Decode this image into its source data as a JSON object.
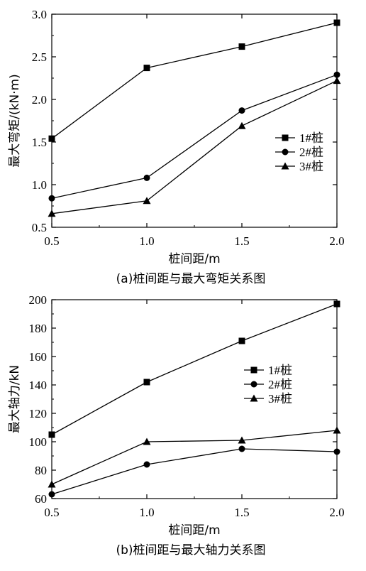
{
  "chart_data": [
    {
      "type": "line",
      "x": [
        0.5,
        1.0,
        1.5,
        2.0
      ],
      "xlim": [
        0.5,
        2.0
      ],
      "ylim": [
        0.5,
        3.0
      ],
      "xticks": [
        "0.5",
        "1.0",
        "1.5",
        "2.0"
      ],
      "yticks": [
        "0.5",
        "1.0",
        "1.5",
        "2.0",
        "2.5",
        "3.0"
      ],
      "xlabel": "桩间距/m",
      "ylabel": "最大弯矩/(kN·m)",
      "caption": "(a)桩间距与最大弯矩关系图",
      "legend_position": "right",
      "series": [
        {
          "name": "1#桩",
          "marker": "square",
          "values": [
            1.54,
            2.37,
            2.62,
            2.9
          ]
        },
        {
          "name": "2#桩",
          "marker": "circle",
          "values": [
            0.84,
            1.08,
            1.87,
            2.29
          ]
        },
        {
          "name": "3#桩",
          "marker": "triangle",
          "values": [
            0.66,
            0.81,
            1.69,
            2.22
          ]
        }
      ]
    },
    {
      "type": "line",
      "x": [
        0.5,
        1.0,
        1.5,
        2.0
      ],
      "xlim": [
        0.5,
        2.0
      ],
      "ylim": [
        60,
        200
      ],
      "xticks": [
        "0.5",
        "1.0",
        "1.5",
        "2.0"
      ],
      "yticks": [
        "60",
        "80",
        "100",
        "120",
        "140",
        "160",
        "180",
        "200"
      ],
      "xlabel": "桩间距/m",
      "ylabel": "最大轴力/kN",
      "caption": "(b)桩间距与最大轴力关系图",
      "legend_position": "right",
      "series": [
        {
          "name": "1#桩",
          "marker": "square",
          "values": [
            105,
            142,
            171,
            197
          ]
        },
        {
          "name": "2#桩",
          "marker": "circle",
          "values": [
            63,
            84,
            95,
            93
          ]
        },
        {
          "name": "3#桩",
          "marker": "triangle",
          "values": [
            70,
            100,
            101,
            108
          ]
        }
      ]
    }
  ]
}
